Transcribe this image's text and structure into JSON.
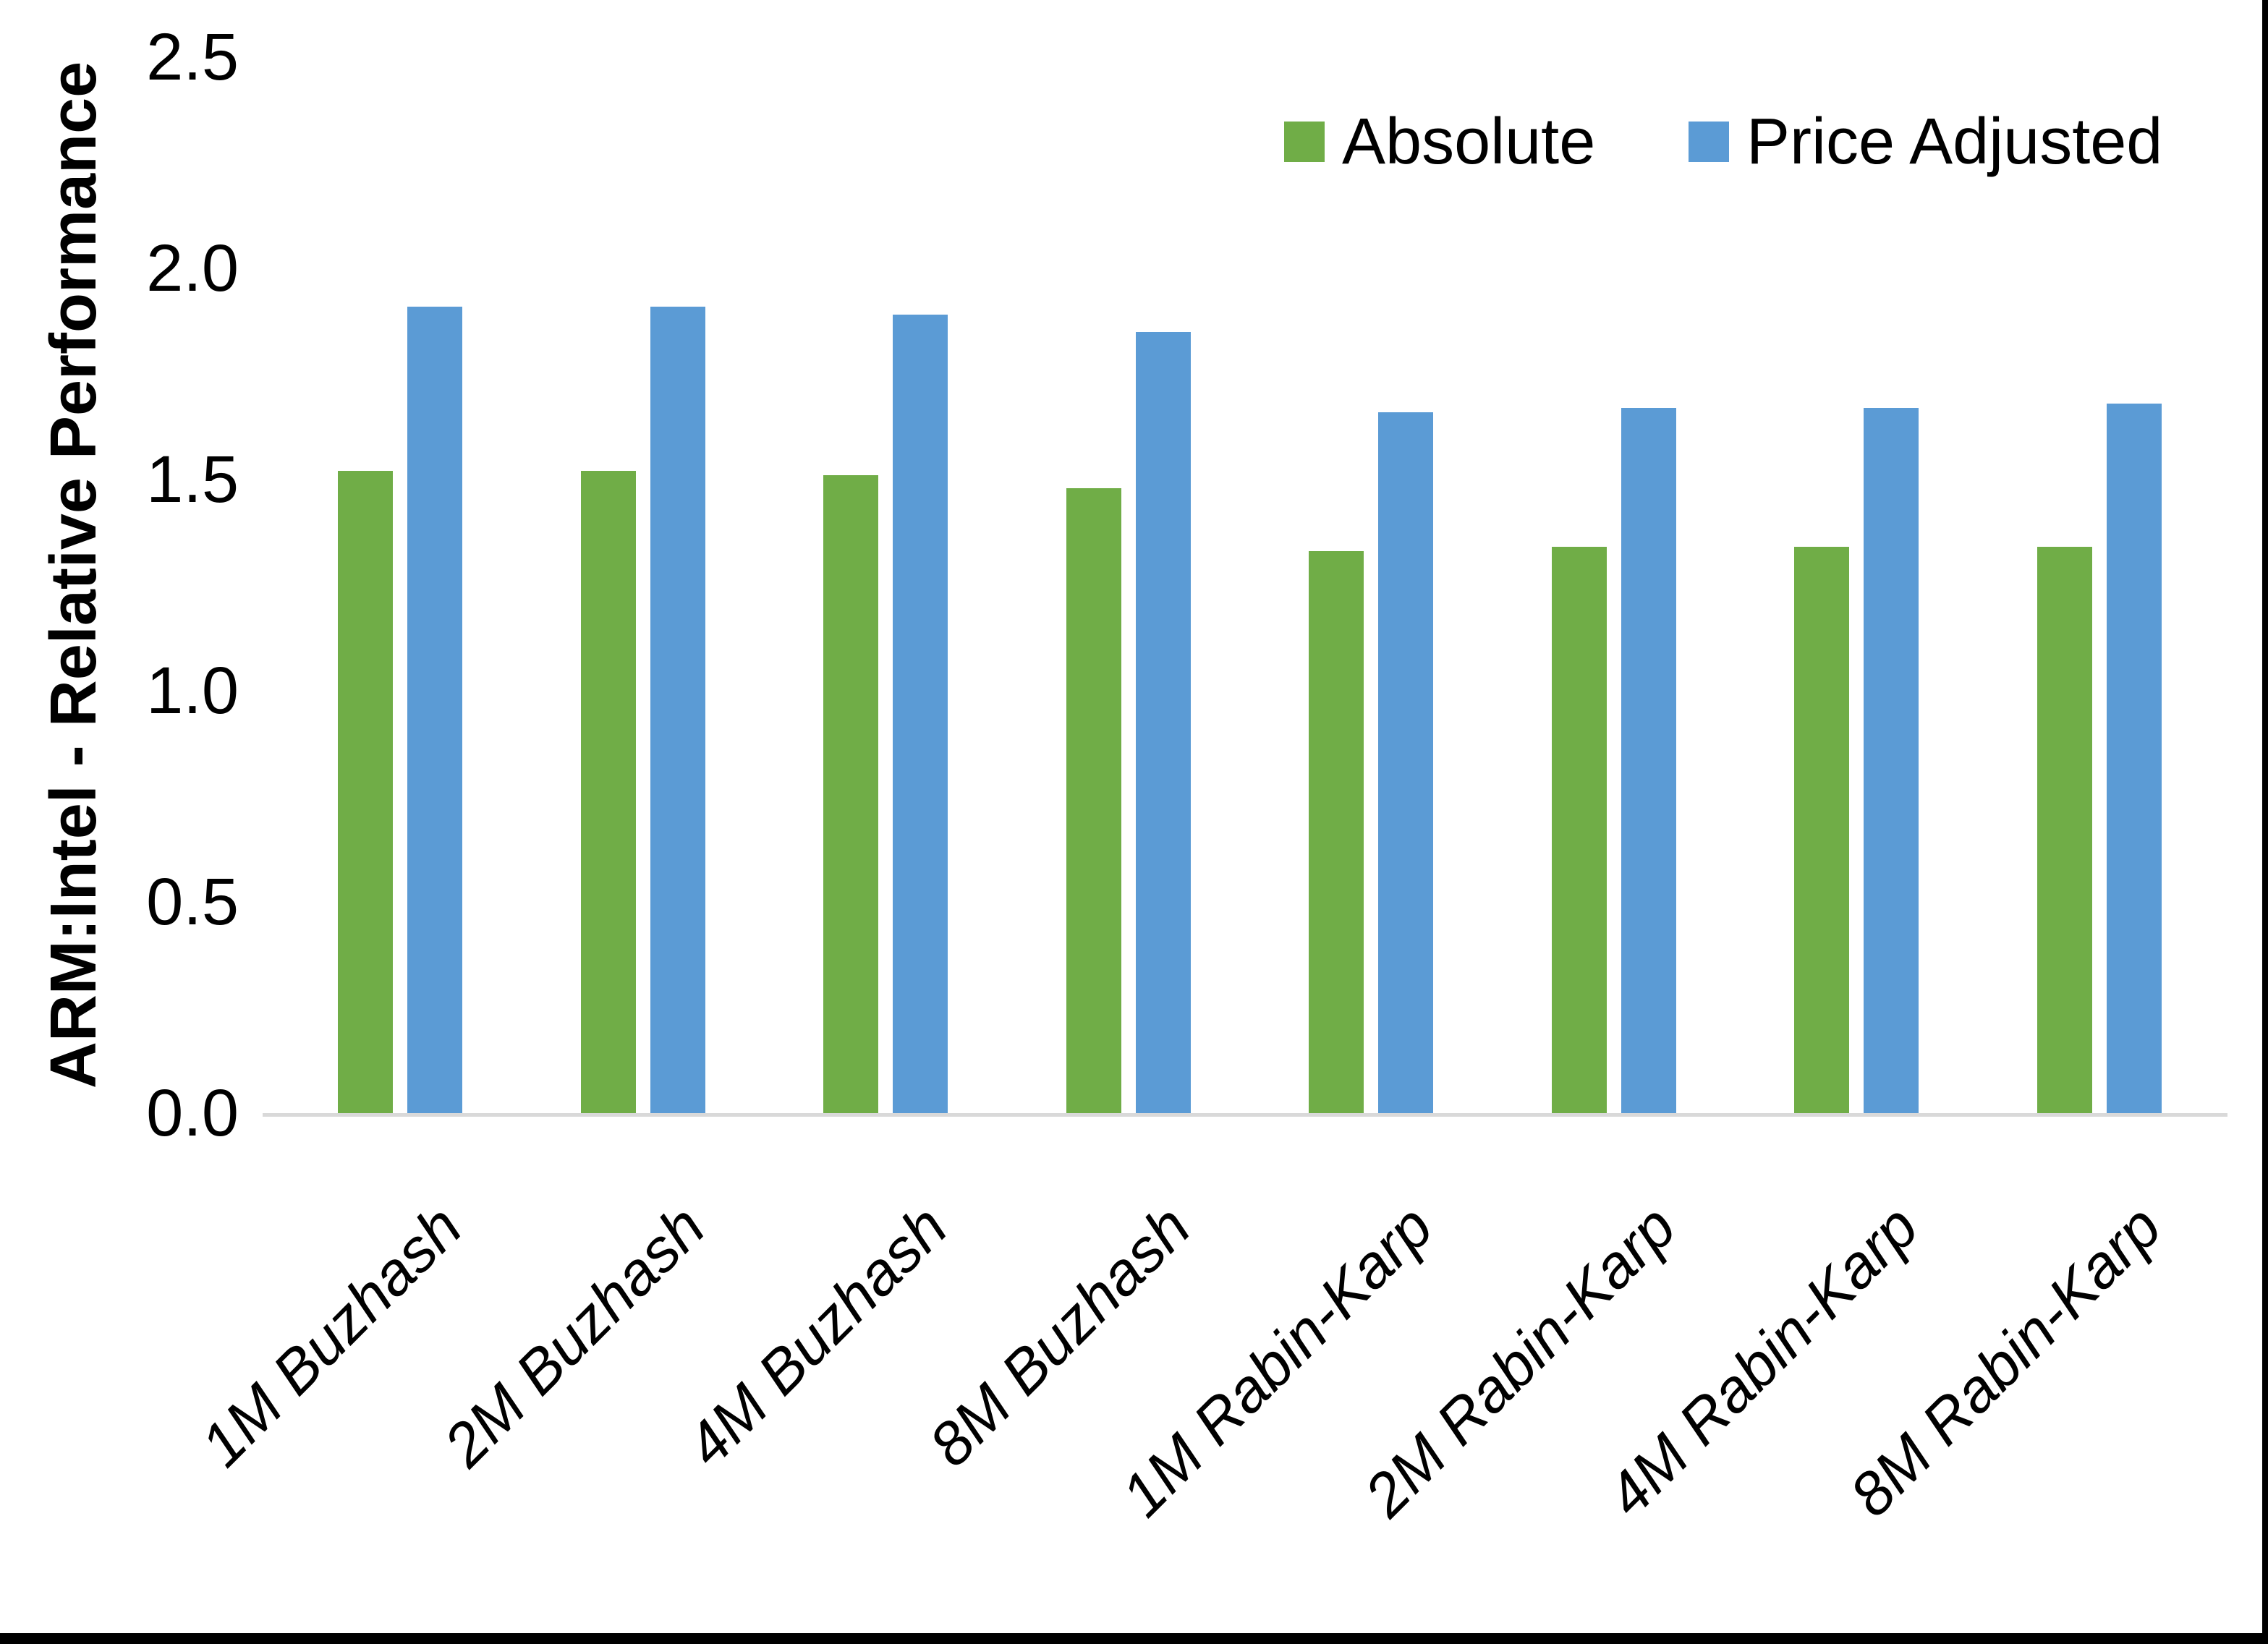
{
  "chart_data": {
    "type": "bar",
    "title": "",
    "xlabel": "",
    "ylabel": "ARM:Intel - Relative Performance",
    "categories": [
      "1M Buzhash",
      "2M Buzhash",
      "4M Buzhash",
      "8M Buzhash",
      "1M Rabin-Karp",
      "2M Rabin-Karp",
      "4M Rabin-Karp",
      "8M Rabin-Karp"
    ],
    "series": [
      {
        "name": "Absolute",
        "color": "#70AD47",
        "values": [
          1.52,
          1.52,
          1.51,
          1.48,
          1.33,
          1.34,
          1.34,
          1.34
        ]
      },
      {
        "name": "Price Adjusted",
        "color": "#5B9BD5",
        "values": [
          1.91,
          1.91,
          1.89,
          1.85,
          1.66,
          1.67,
          1.67,
          1.68
        ]
      }
    ],
    "ylim": [
      0,
      2.5
    ],
    "yticks": [
      "0.0",
      "0.5",
      "1.0",
      "1.5",
      "2.0",
      "2.5"
    ],
    "grid": false,
    "legend_position": "top-right",
    "colors": {
      "axis_line": "#D9D9D9",
      "page_border": "#000000",
      "background": "#FFFFFF",
      "text": "#000000"
    }
  }
}
